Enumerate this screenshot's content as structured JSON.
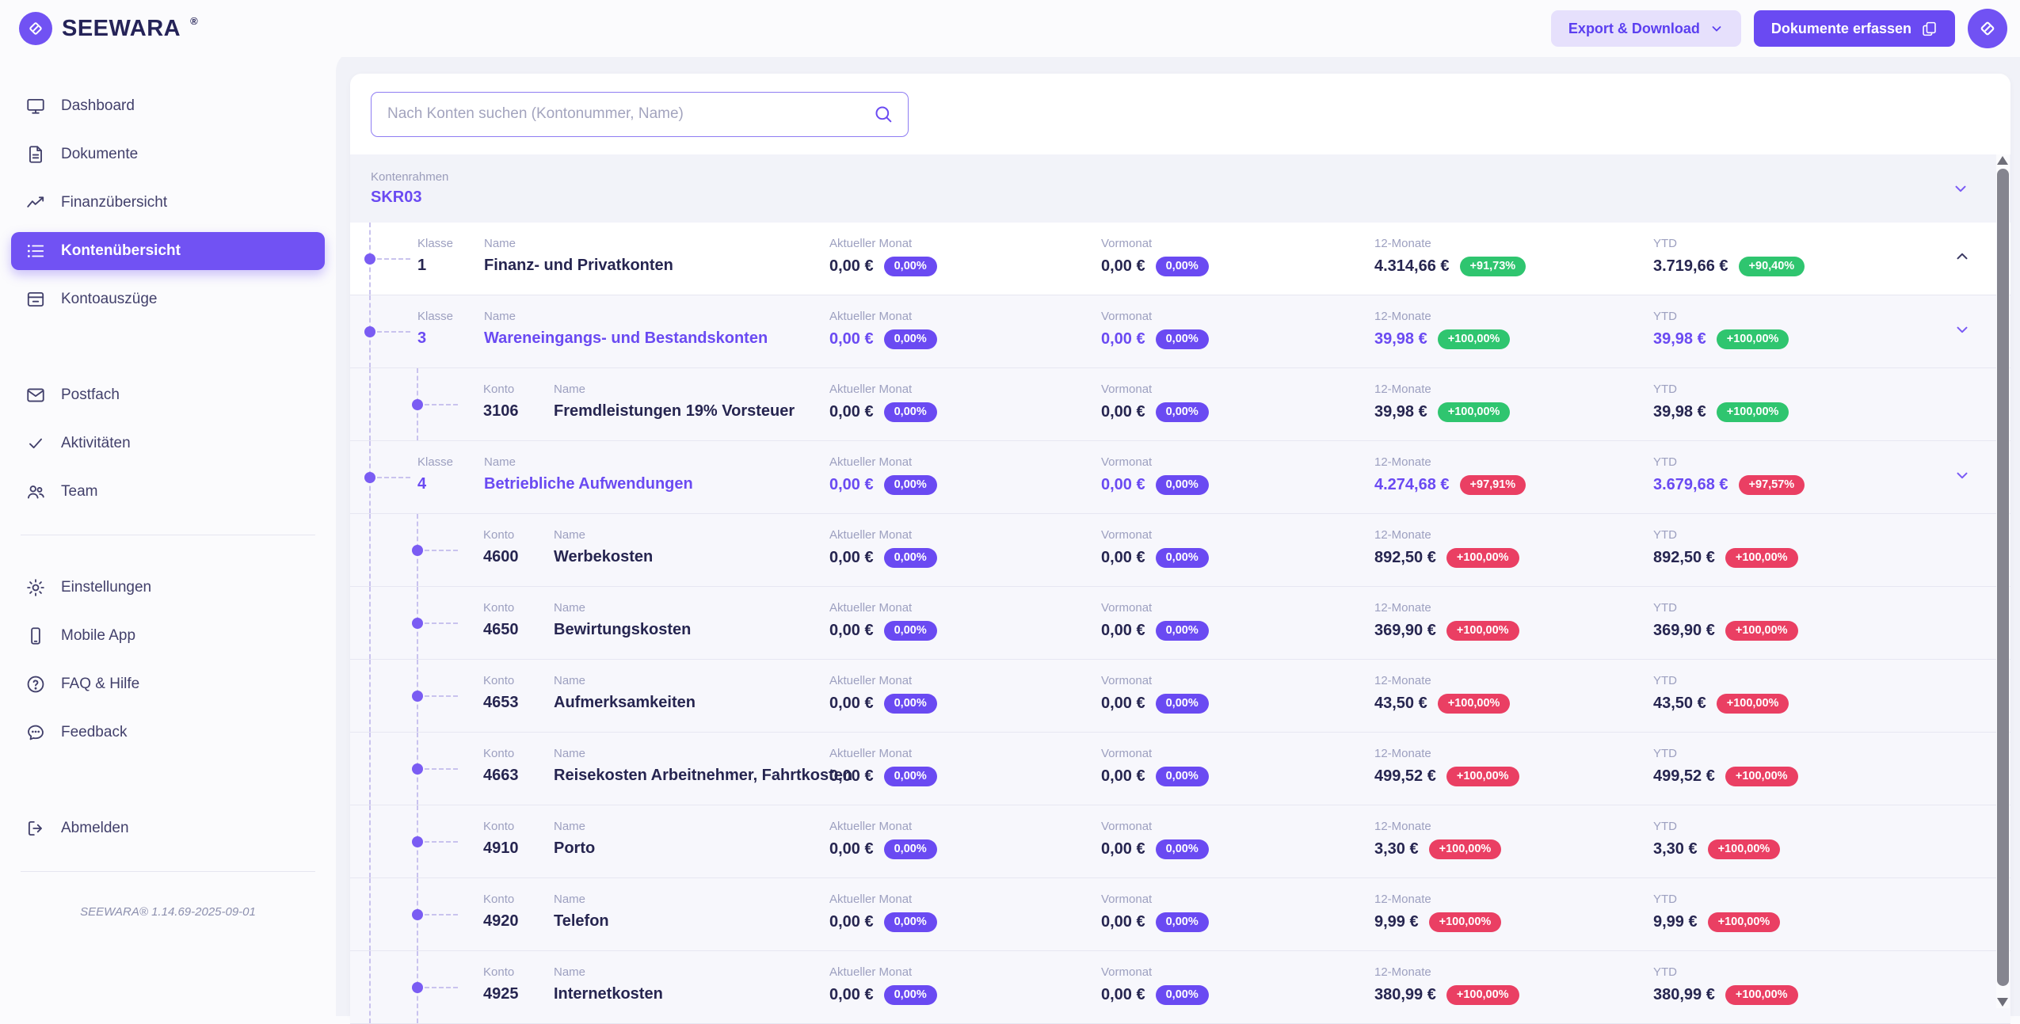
{
  "brand": {
    "name": "SEEWARA",
    "reg": "®"
  },
  "header": {
    "export_button": "Export & Download",
    "capture_button": "Dokumente erfassen"
  },
  "sidebar": {
    "main": [
      {
        "label": "Dashboard",
        "icon": "monitor",
        "active": false
      },
      {
        "label": "Dokumente",
        "icon": "document",
        "active": false
      },
      {
        "label": "Finanzübersicht",
        "icon": "trend",
        "active": false
      },
      {
        "label": "Kontenübersicht",
        "icon": "list",
        "active": true
      },
      {
        "label": "Kontoauszüge",
        "icon": "statements",
        "active": false
      }
    ],
    "secondary": [
      {
        "label": "Postfach",
        "icon": "mail",
        "active": false
      },
      {
        "label": "Aktivitäten",
        "icon": "check",
        "active": false
      },
      {
        "label": "Team",
        "icon": "users",
        "active": false
      }
    ],
    "tertiary": [
      {
        "label": "Einstellungen",
        "icon": "gear",
        "active": false
      },
      {
        "label": "Mobile App",
        "icon": "phone",
        "active": false
      },
      {
        "label": "FAQ & Hilfe",
        "icon": "help",
        "active": false
      },
      {
        "label": "Feedback",
        "icon": "chat",
        "active": false
      }
    ],
    "logout": {
      "label": "Abmelden",
      "icon": "logout",
      "active": false
    },
    "version": "SEEWARA® 1.14.69-2025-09-01"
  },
  "search": {
    "placeholder": "Nach Konten suchen (Kontonummer, Name)"
  },
  "kontenrahmen": {
    "label": "Kontenrahmen",
    "value": "SKR03"
  },
  "table": {
    "labels": {
      "klasse": "Klasse",
      "konto": "Konto",
      "name": "Name",
      "current": "Aktueller Monat",
      "previous": "Vormonat",
      "twelve": "12-Monate",
      "ytd": "YTD"
    },
    "rows": [
      {
        "kind": "class",
        "number": "1",
        "name": "Finanz- und Privatkonten",
        "accent": false,
        "chevron": "up",
        "current": "0,00 €",
        "current_pct": "0,00%",
        "previous": "0,00 €",
        "previous_pct": "0,00%",
        "twelve": "4.314,66 €",
        "twelve_pct": "+91,73%",
        "ytd": "3.719,66 €",
        "ytd_pct": "+90,40%",
        "trend": "green"
      },
      {
        "kind": "class",
        "number": "3",
        "name": "Wareneingangs- und Bestandskonten",
        "accent": true,
        "chevron": "down",
        "current": "0,00 €",
        "current_pct": "0,00%",
        "previous": "0,00 €",
        "previous_pct": "0,00%",
        "twelve": "39,98 €",
        "twelve_pct": "+100,00%",
        "ytd": "39,98 €",
        "ytd_pct": "+100,00%",
        "trend": "green"
      },
      {
        "kind": "account",
        "number": "3106",
        "name": "Fremdleistungen 19% Vorsteuer",
        "accent": false,
        "chevron": null,
        "current": "0,00 €",
        "current_pct": "0,00%",
        "previous": "0,00 €",
        "previous_pct": "0,00%",
        "twelve": "39,98 €",
        "twelve_pct": "+100,00%",
        "ytd": "39,98 €",
        "ytd_pct": "+100,00%",
        "trend": "green"
      },
      {
        "kind": "class",
        "number": "4",
        "name": "Betriebliche Aufwendungen",
        "accent": true,
        "chevron": "down",
        "current": "0,00 €",
        "current_pct": "0,00%",
        "previous": "0,00 €",
        "previous_pct": "0,00%",
        "twelve": "4.274,68 €",
        "twelve_pct": "+97,91%",
        "ytd": "3.679,68 €",
        "ytd_pct": "+97,57%",
        "trend": "red"
      },
      {
        "kind": "account",
        "number": "4600",
        "name": "Werbekosten",
        "accent": false,
        "chevron": null,
        "current": "0,00 €",
        "current_pct": "0,00%",
        "previous": "0,00 €",
        "previous_pct": "0,00%",
        "twelve": "892,50 €",
        "twelve_pct": "+100,00%",
        "ytd": "892,50 €",
        "ytd_pct": "+100,00%",
        "trend": "red"
      },
      {
        "kind": "account",
        "number": "4650",
        "name": "Bewirtungskosten",
        "accent": false,
        "chevron": null,
        "current": "0,00 €",
        "current_pct": "0,00%",
        "previous": "0,00 €",
        "previous_pct": "0,00%",
        "twelve": "369,90 €",
        "twelve_pct": "+100,00%",
        "ytd": "369,90 €",
        "ytd_pct": "+100,00%",
        "trend": "red"
      },
      {
        "kind": "account",
        "number": "4653",
        "name": "Aufmerksamkeiten",
        "accent": false,
        "chevron": null,
        "current": "0,00 €",
        "current_pct": "0,00%",
        "previous": "0,00 €",
        "previous_pct": "0,00%",
        "twelve": "43,50 €",
        "twelve_pct": "+100,00%",
        "ytd": "43,50 €",
        "ytd_pct": "+100,00%",
        "trend": "red"
      },
      {
        "kind": "account",
        "number": "4663",
        "name": "Reisekosten Arbeitnehmer, Fahrtkosten",
        "accent": false,
        "chevron": null,
        "current": "0,00 €",
        "current_pct": "0,00%",
        "previous": "0,00 €",
        "previous_pct": "0,00%",
        "twelve": "499,52 €",
        "twelve_pct": "+100,00%",
        "ytd": "499,52 €",
        "ytd_pct": "+100,00%",
        "trend": "red"
      },
      {
        "kind": "account",
        "number": "4910",
        "name": "Porto",
        "accent": false,
        "chevron": null,
        "current": "0,00 €",
        "current_pct": "0,00%",
        "previous": "0,00 €",
        "previous_pct": "0,00%",
        "twelve": "3,30 €",
        "twelve_pct": "+100,00%",
        "ytd": "3,30 €",
        "ytd_pct": "+100,00%",
        "trend": "red"
      },
      {
        "kind": "account",
        "number": "4920",
        "name": "Telefon",
        "accent": false,
        "chevron": null,
        "current": "0,00 €",
        "current_pct": "0,00%",
        "previous": "0,00 €",
        "previous_pct": "0,00%",
        "twelve": "9,99 €",
        "twelve_pct": "+100,00%",
        "ytd": "9,99 €",
        "ytd_pct": "+100,00%",
        "trend": "red"
      },
      {
        "kind": "account",
        "number": "4925",
        "name": "Internetkosten",
        "accent": false,
        "chevron": null,
        "current": "0,00 €",
        "current_pct": "0,00%",
        "previous": "0,00 €",
        "previous_pct": "0,00%",
        "twelve": "380,99 €",
        "twelve_pct": "+100,00%",
        "ytd": "380,99 €",
        "ytd_pct": "+100,00%",
        "trend": "red"
      }
    ]
  },
  "colors": {
    "accent": "#7152f3",
    "accent_strong": "#6a4af2",
    "badge_purple": "#6a4af2",
    "badge_green": "#2fc56f",
    "badge_red": "#ea3f63",
    "shell_bg": "#fbfbfd"
  }
}
